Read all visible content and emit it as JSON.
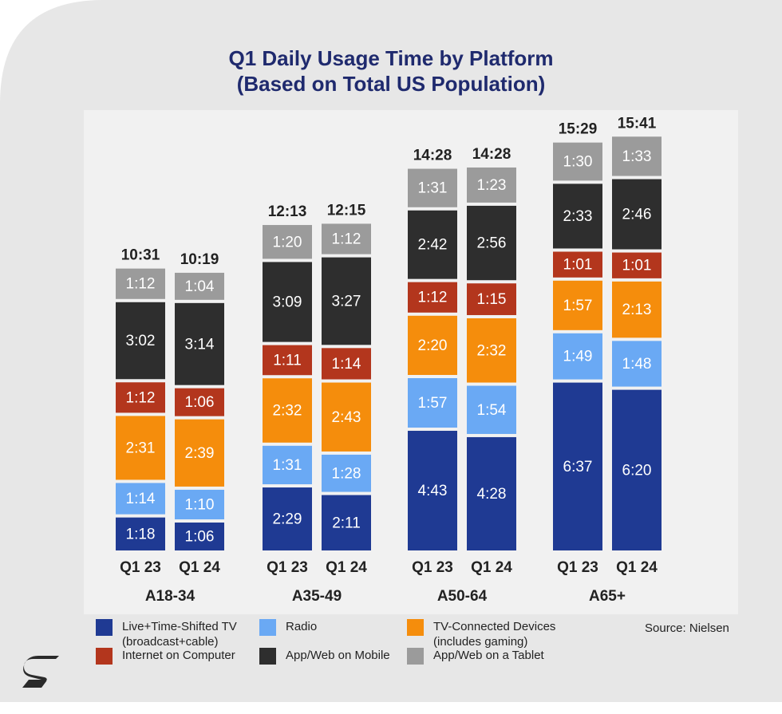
{
  "chart_data": {
    "type": "stacked_bar",
    "title": "Q1 Daily Usage Time by Platform",
    "subtitle": "(Based on Total US Population)",
    "groups": [
      "A18-34",
      "A35-49",
      "A50-64",
      "A65+"
    ],
    "categories": [
      "Q1 23",
      "Q1 24",
      "Q1 23",
      "Q1 24",
      "Q1 23",
      "Q1 24",
      "Q1 23",
      "Q1 24"
    ],
    "series": [
      {
        "name": "Live+Time-Shifted TV (broadcast+cable)",
        "color": "#1f3a93",
        "values": [
          78,
          66,
          149,
          131,
          283,
          268,
          397,
          380
        ],
        "value_labels": [
          "1:18",
          "1:06",
          "2:29",
          "2:11",
          "4:43",
          "4:28",
          "6:37",
          "6:20"
        ]
      },
      {
        "name": "Radio",
        "color": "#6aa9f4",
        "values": [
          74,
          70,
          91,
          88,
          117,
          114,
          109,
          108
        ],
        "value_labels": [
          "1:14",
          "1:10",
          "1:31",
          "1:28",
          "1:57",
          "1:54",
          "1:49",
          "1:48"
        ]
      },
      {
        "name": "TV-Connected Devices (includes gaming)",
        "color": "#f58d0c",
        "values": [
          151,
          159,
          152,
          163,
          140,
          152,
          117,
          133
        ],
        "value_labels": [
          "2:31",
          "2:39",
          "2:32",
          "2:43",
          "2:20",
          "2:32",
          "1:57",
          "2:13"
        ]
      },
      {
        "name": "Internet on Computer",
        "color": "#b3361d",
        "values": [
          72,
          66,
          71,
          74,
          72,
          75,
          61,
          61
        ],
        "value_labels": [
          "1:12",
          "1:06",
          "1:11",
          "1:14",
          "1:12",
          "1:15",
          "1:01",
          "1:01"
        ]
      },
      {
        "name": "App/Web on Mobile",
        "color": "#2e2e2e",
        "values": [
          182,
          194,
          189,
          207,
          162,
          176,
          153,
          166
        ],
        "value_labels": [
          "3:02",
          "3:14",
          "3:09",
          "3:27",
          "2:42",
          "2:56",
          "2:33",
          "2:46"
        ]
      },
      {
        "name": "App/Web on a Tablet",
        "color": "#9b9b9b",
        "values": [
          72,
          64,
          80,
          72,
          91,
          83,
          90,
          93
        ],
        "value_labels": [
          "1:12",
          "1:04",
          "1:20",
          "1:12",
          "1:31",
          "1:23",
          "1:30",
          "1:33"
        ]
      }
    ],
    "totals": [
      631,
      619,
      733,
      735,
      868,
      868,
      929,
      941
    ],
    "total_labels": [
      "10:31",
      "10:19",
      "12:13",
      "12:15",
      "14:28",
      "14:28",
      "15:29",
      "15:41"
    ],
    "source": "Source: Nielsen"
  }
}
